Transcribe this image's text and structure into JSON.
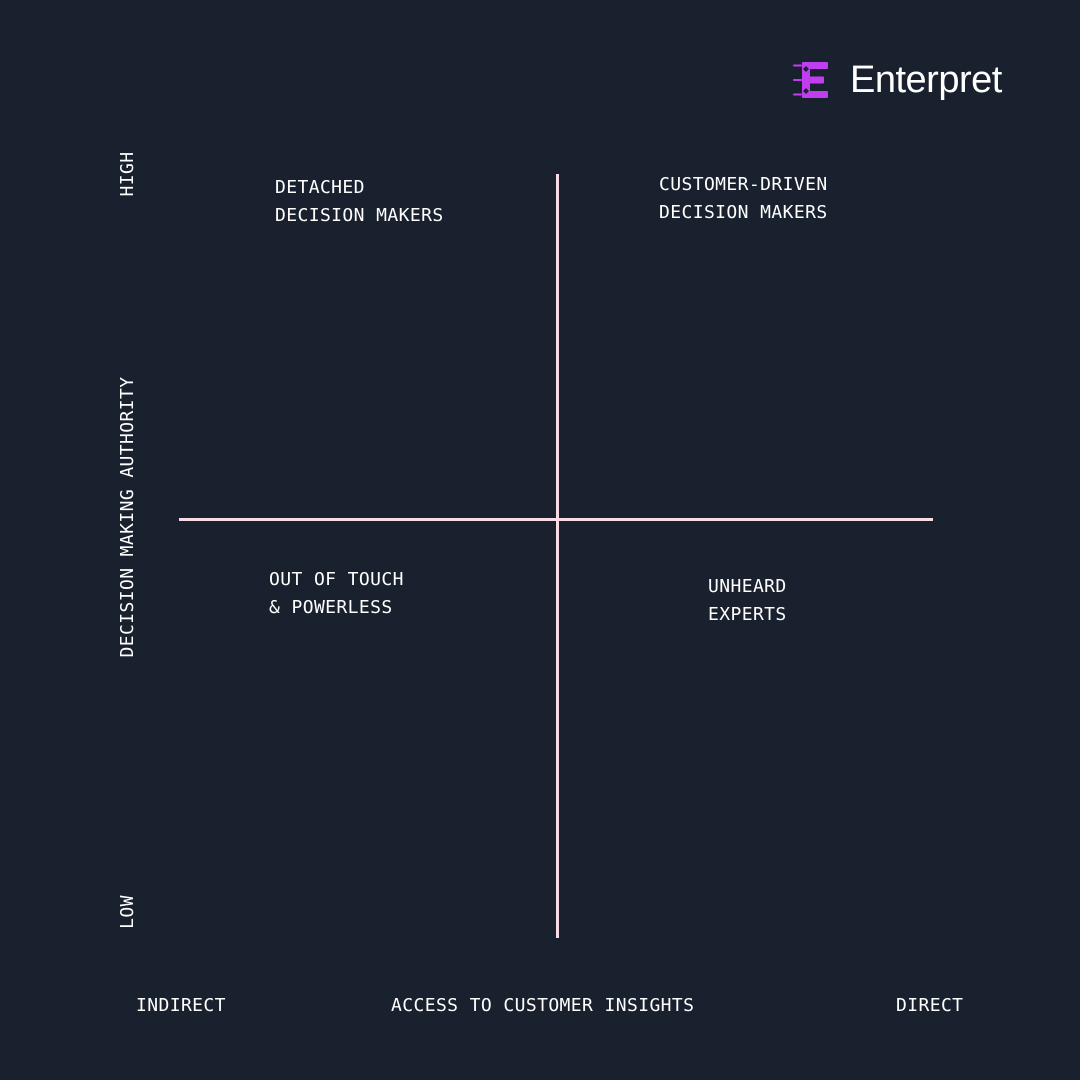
{
  "brand": {
    "name": "Enterpret",
    "logo_icon": "enterpret-e-icon",
    "logo_color": "#c13ef0"
  },
  "colors": {
    "background": "#19212e",
    "axis": "#f7dbe5",
    "text": "#ffffff"
  },
  "axes": {
    "x_title": "ACCESS TO CUSTOMER INSIGHTS",
    "x_low": "INDIRECT",
    "x_high": "DIRECT",
    "y_title": "DECISION MAKING AUTHORITY",
    "y_low": "LOW",
    "y_high": "HIGH"
  },
  "quadrants": {
    "top_left": [
      "DETACHED",
      "DECISION MAKERS"
    ],
    "top_right": [
      "CUSTOMER-DRIVEN",
      "DECISION MAKERS"
    ],
    "bottom_left": [
      "OUT OF TOUCH",
      "& POWERLESS"
    ],
    "bottom_right": [
      "UNHEARD",
      "EXPERTS"
    ]
  }
}
